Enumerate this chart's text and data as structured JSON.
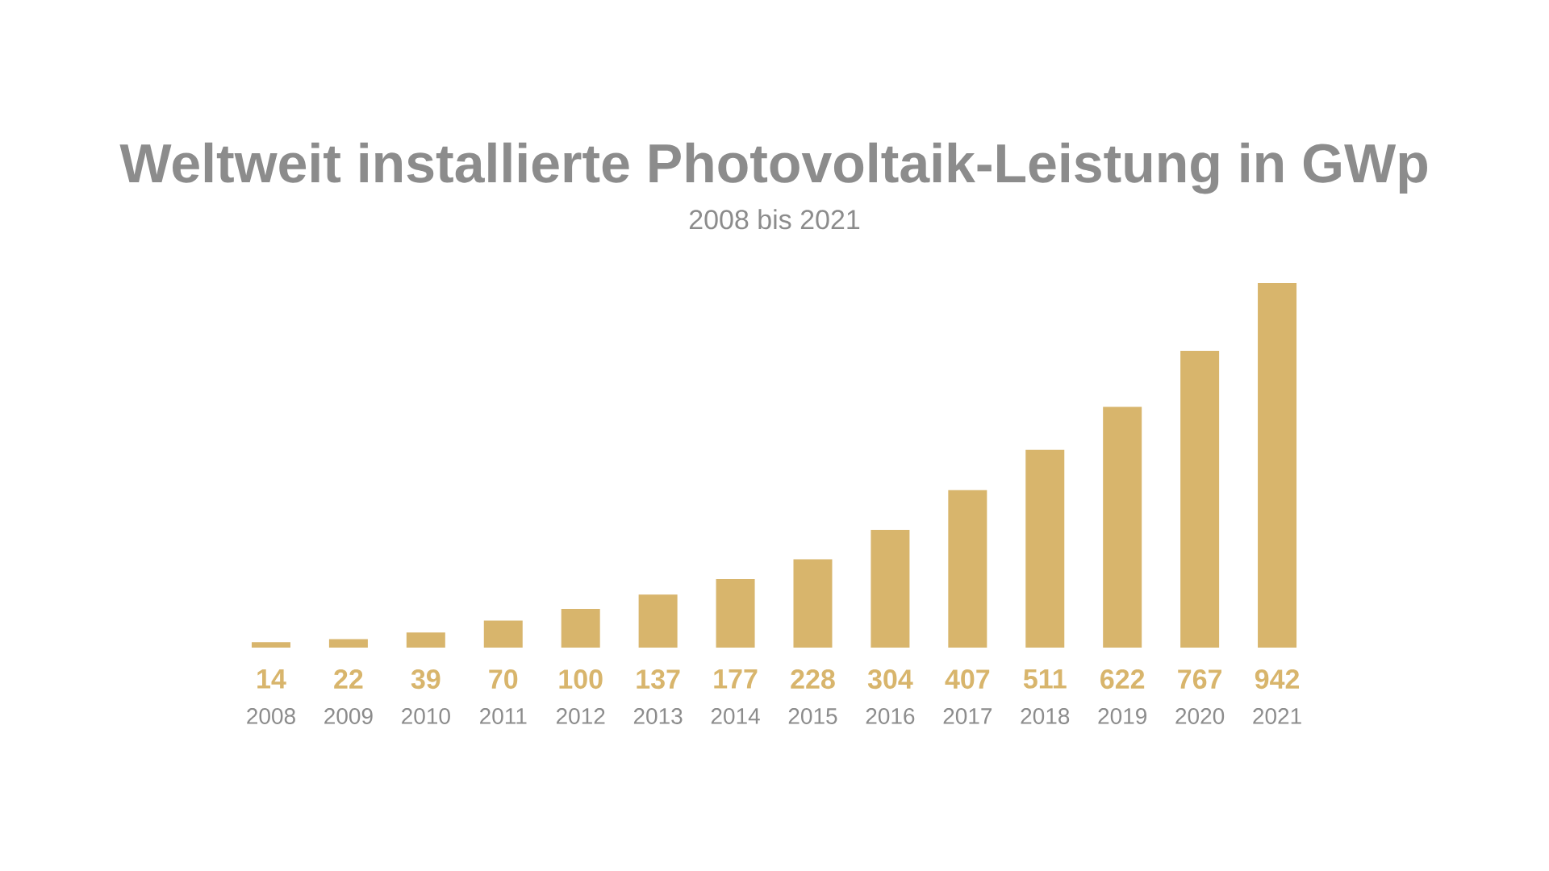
{
  "chart_data": {
    "type": "bar",
    "title": "Weltweit installierte Photovoltaik-Leistung in GWp",
    "subtitle": "2008 bis 2021",
    "categories": [
      "2008",
      "2009",
      "2010",
      "2011",
      "2012",
      "2013",
      "2014",
      "2015",
      "2016",
      "2017",
      "2018",
      "2019",
      "2020",
      "2021"
    ],
    "values": [
      14,
      22,
      39,
      70,
      100,
      137,
      177,
      228,
      304,
      407,
      511,
      622,
      767,
      942
    ],
    "color": "#d8b56c",
    "data_labels": true
  }
}
